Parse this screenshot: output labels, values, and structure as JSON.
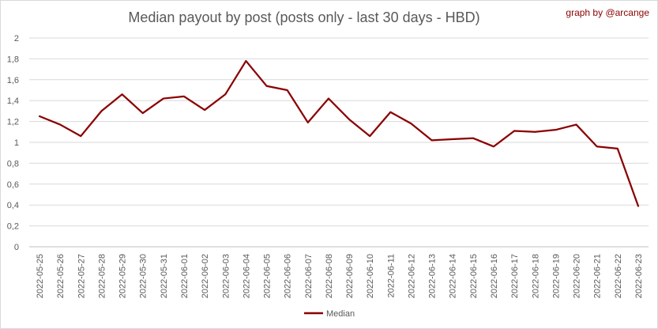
{
  "chart_data": {
    "type": "line",
    "title": "Median payout by post (posts only - last 30 days - HBD)",
    "credit": "graph by @arcange",
    "xlabel": "",
    "ylabel": "",
    "ylim": [
      0,
      2
    ],
    "yticks": [
      "0",
      "0,2",
      "0,4",
      "0,6",
      "0,8",
      "1",
      "1,2",
      "1,4",
      "1,6",
      "1,8",
      "2"
    ],
    "grid": true,
    "legend_position": "bottom",
    "categories": [
      "2022-05-25",
      "2022-05-26",
      "2022-05-27",
      "2022-05-28",
      "2022-05-29",
      "2022-05-30",
      "2022-05-31",
      "2022-06-01",
      "2022-06-02",
      "2022-06-03",
      "2022-06-04",
      "2022-06-05",
      "2022-06-06",
      "2022-06-07",
      "2022-06-08",
      "2022-06-09",
      "2022-06-10",
      "2022-06-11",
      "2022-06-12",
      "2022-06-13",
      "2022-06-14",
      "2022-06-15",
      "2022-06-16",
      "2022-06-17",
      "2022-06-18",
      "2022-06-19",
      "2022-06-20",
      "2022-06-21",
      "2022-06-22",
      "2022-06-23"
    ],
    "series": [
      {
        "name": "Median",
        "color": "#8b0000",
        "values": [
          1.25,
          1.17,
          1.06,
          1.3,
          1.46,
          1.28,
          1.42,
          1.44,
          1.31,
          1.46,
          1.78,
          1.54,
          1.5,
          1.19,
          1.42,
          1.22,
          1.06,
          1.29,
          1.18,
          1.02,
          1.03,
          1.04,
          0.96,
          1.11,
          1.1,
          1.12,
          1.17,
          0.96,
          0.94,
          0.39
        ]
      }
    ]
  }
}
